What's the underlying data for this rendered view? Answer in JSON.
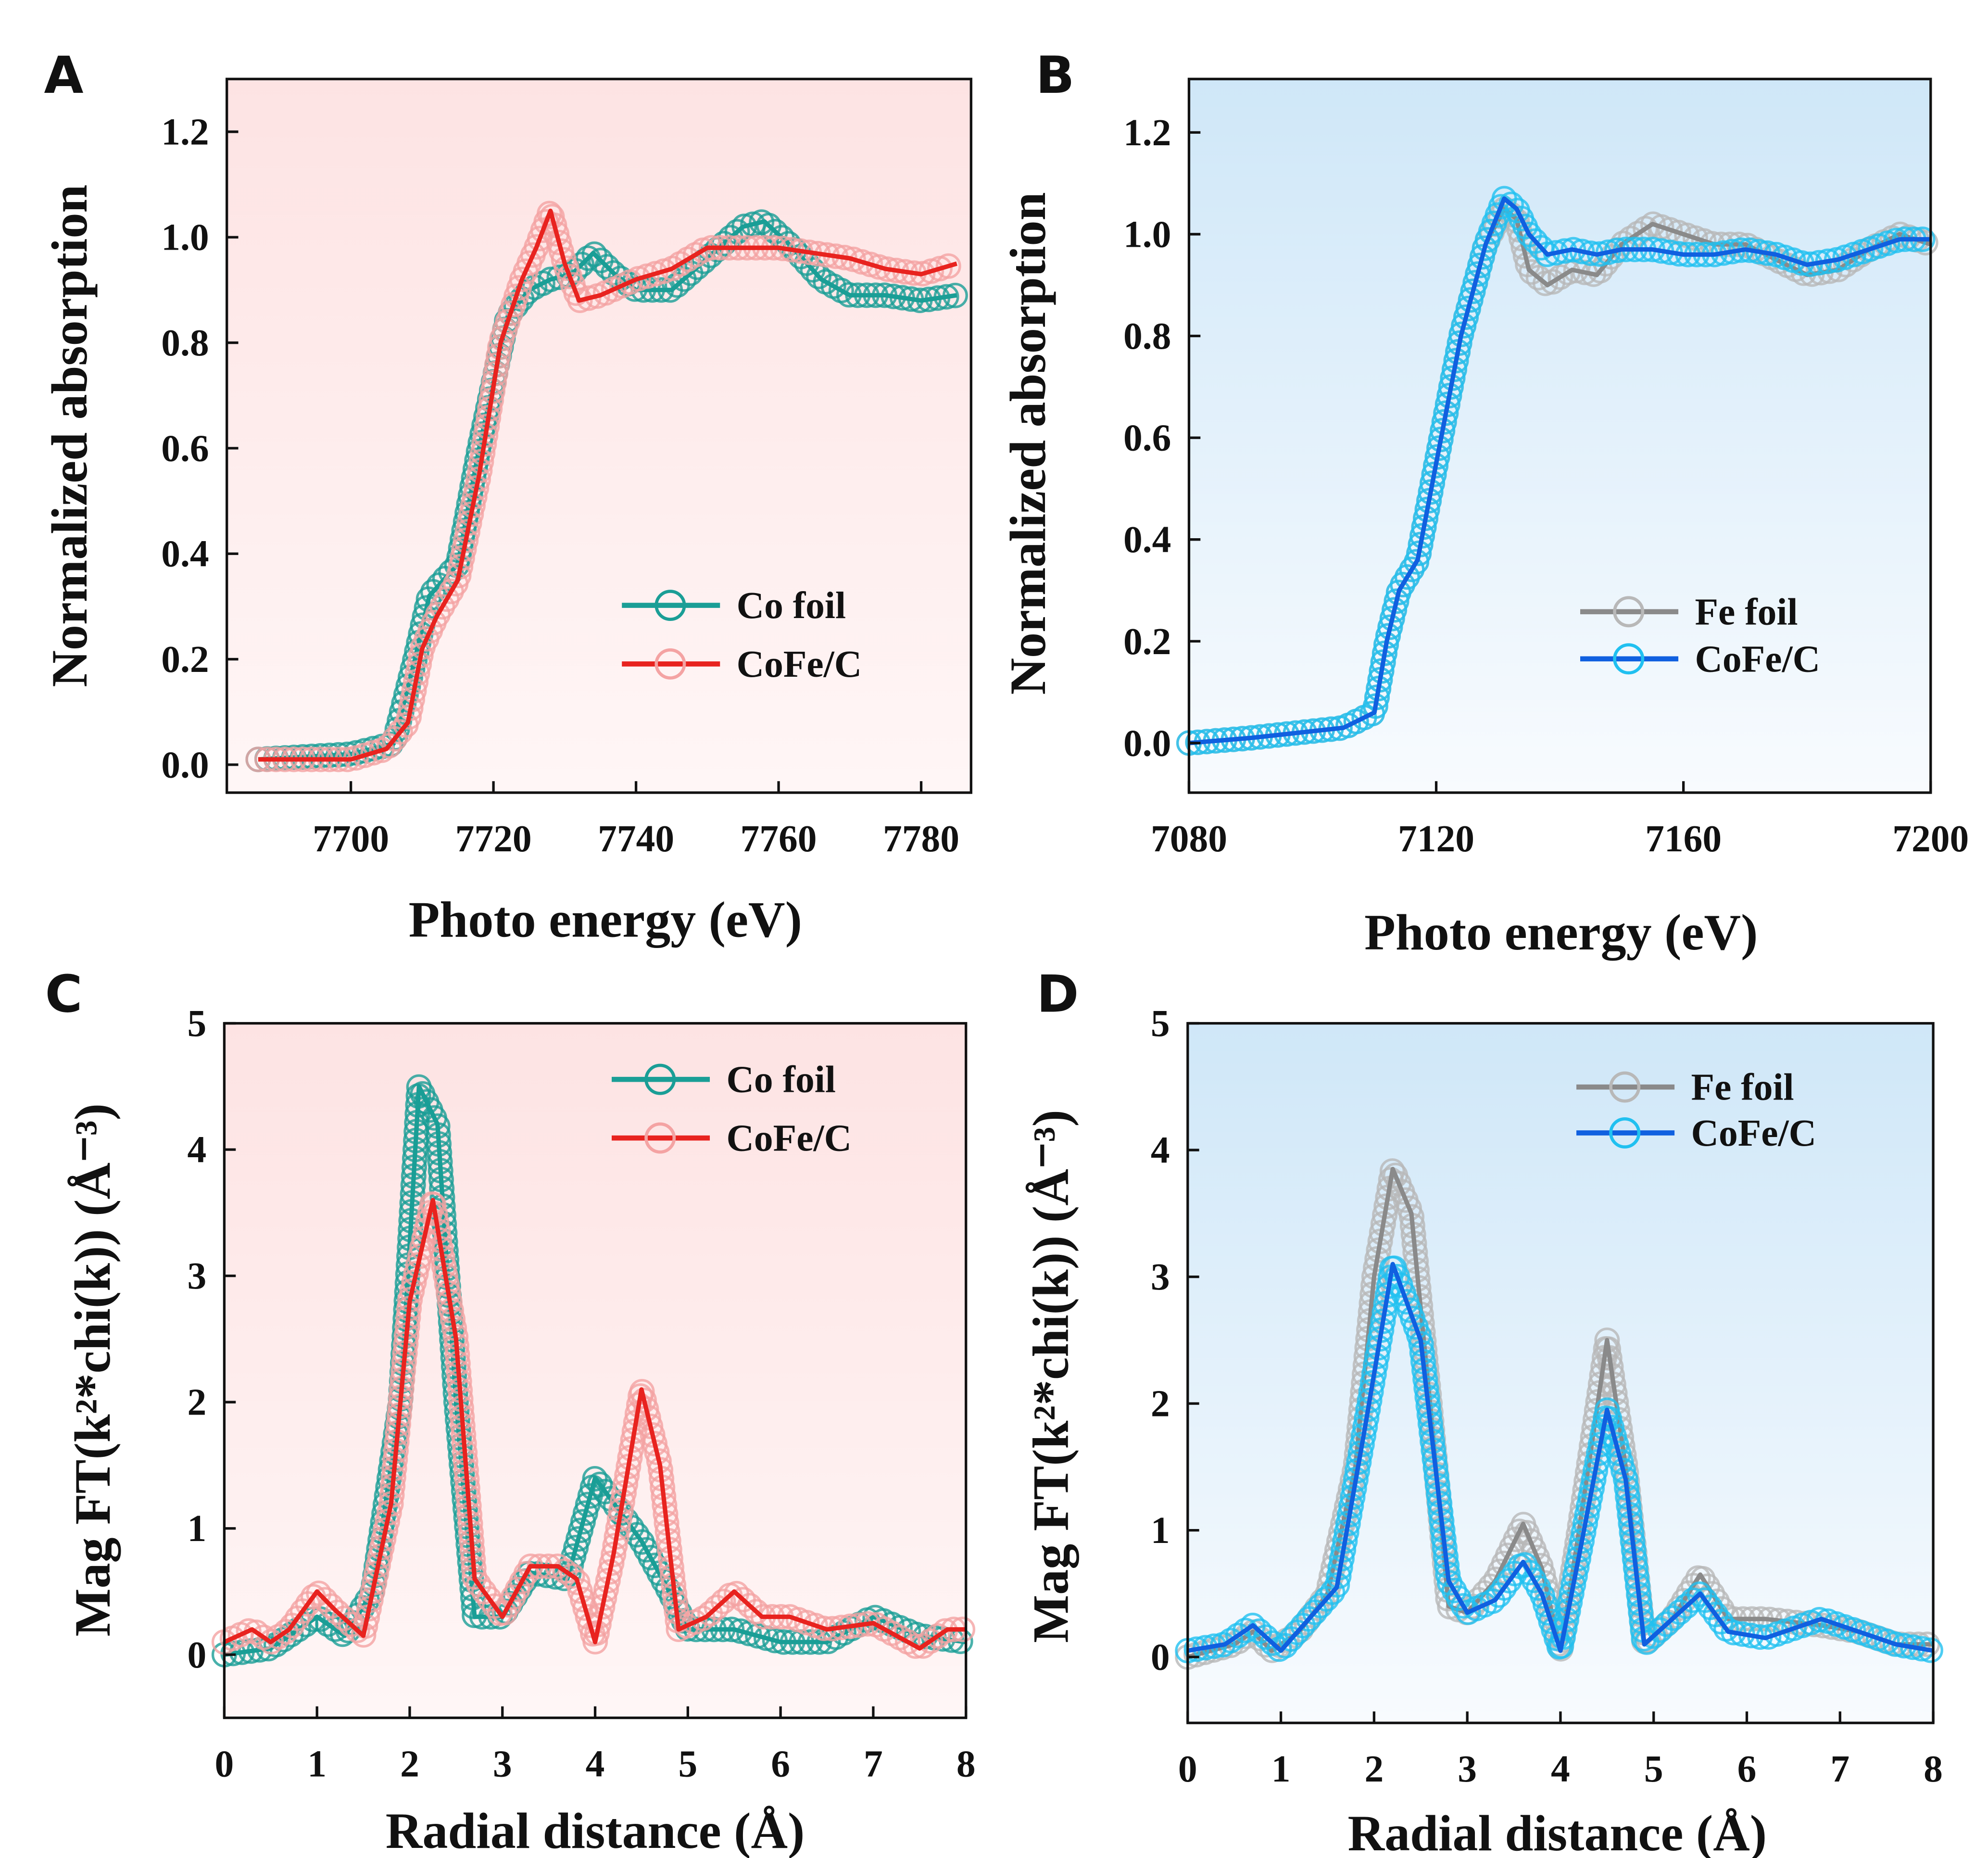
{
  "chart_data": [
    {
      "panel": "A",
      "type": "line",
      "xlabel": "Photo energy (eV)",
      "ylabel": "Normalized absorption",
      "xlim": [
        7682.6,
        7787
      ],
      "ylim": [
        -0.053,
        1.3
      ],
      "xticks": [
        "7700",
        "7720",
        "7740",
        "7760",
        "7780"
      ],
      "xtick_values": [
        7700,
        7720,
        7740,
        7760,
        7780
      ],
      "yticks": [
        "0.0",
        "0.2",
        "0.4",
        "0.6",
        "0.8",
        "1.0",
        "1.2"
      ],
      "ytick_values": [
        0,
        0.2,
        0.4,
        0.6,
        0.8,
        1.0,
        1.2
      ],
      "background": "pink",
      "legend": "center-right",
      "series": [
        {
          "name": "Co foil",
          "line_color": "#1a9e96",
          "marker_color": "#1a9e96",
          "x": [
            7687,
            7700,
            7706,
            7709,
            7711,
            7713,
            7715,
            7718,
            7722,
            7725,
            7728,
            7731,
            7734,
            7737,
            7740,
            7745,
            7750,
            7755,
            7758,
            7762,
            7766,
            7770,
            7775,
            7780,
            7785
          ],
          "y": [
            0.01,
            0.02,
            0.04,
            0.2,
            0.32,
            0.35,
            0.38,
            0.6,
            0.85,
            0.9,
            0.92,
            0.93,
            0.97,
            0.93,
            0.9,
            0.9,
            0.96,
            1.02,
            1.03,
            0.98,
            0.92,
            0.89,
            0.89,
            0.88,
            0.89
          ]
        },
        {
          "name": "CoFe/C",
          "line_color": "#e8231f",
          "marker_color": "#f4a3a3",
          "x": [
            7687,
            7700,
            7705,
            7708,
            7710,
            7712,
            7715,
            7718,
            7721,
            7724,
            7726,
            7728,
            7730,
            7732,
            7735,
            7740,
            7745,
            7750,
            7755,
            7760,
            7765,
            7770,
            7775,
            7780,
            7785
          ],
          "y": [
            0.01,
            0.01,
            0.03,
            0.08,
            0.22,
            0.28,
            0.35,
            0.55,
            0.8,
            0.92,
            0.98,
            1.05,
            0.95,
            0.88,
            0.89,
            0.92,
            0.94,
            0.98,
            0.98,
            0.98,
            0.97,
            0.96,
            0.94,
            0.93,
            0.95
          ]
        }
      ]
    },
    {
      "panel": "B",
      "type": "line",
      "xlabel": "Photo energy (eV)",
      "ylabel": "Normalized absorption",
      "xlim": [
        7080,
        7200
      ],
      "ylim": [
        -0.0975,
        1.305
      ],
      "xticks": [
        "7080",
        "7120",
        "7160",
        "7200"
      ],
      "xtick_values": [
        7080,
        7120,
        7160,
        7200
      ],
      "yticks": [
        "0.0",
        "0.2",
        "0.4",
        "0.6",
        "0.8",
        "1.0",
        "1.2"
      ],
      "ytick_values": [
        0,
        0.2,
        0.4,
        0.6,
        0.8,
        1.0,
        1.2
      ],
      "background": "light-blue",
      "legend": "center-right",
      "series": [
        {
          "name": "Fe foil",
          "line_color": "#8a8a8a",
          "marker_color": "#b8b8b8",
          "x": [
            7080,
            7090,
            7105,
            7110,
            7112,
            7114,
            7117,
            7120,
            7124,
            7128,
            7131,
            7133,
            7135,
            7138,
            7142,
            7146,
            7150,
            7155,
            7160,
            7165,
            7170,
            7175,
            7180,
            7185,
            7190,
            7195,
            7200
          ],
          "y": [
            0,
            0.01,
            0.03,
            0.06,
            0.2,
            0.3,
            0.36,
            0.55,
            0.8,
            0.98,
            1.05,
            1.03,
            0.93,
            0.9,
            0.93,
            0.92,
            0.98,
            1.02,
            1.0,
            0.98,
            0.98,
            0.95,
            0.92,
            0.93,
            0.97,
            1.0,
            0.98
          ]
        },
        {
          "name": "CoFe/C",
          "line_color": "#1060e0",
          "marker_color": "#20c0f0",
          "x": [
            7080,
            7090,
            7105,
            7110,
            7112,
            7114,
            7117,
            7120,
            7124,
            7128,
            7131,
            7133,
            7135,
            7138,
            7142,
            7146,
            7150,
            7155,
            7160,
            7165,
            7170,
            7175,
            7180,
            7185,
            7190,
            7195,
            7200
          ],
          "y": [
            0,
            0.01,
            0.03,
            0.06,
            0.2,
            0.3,
            0.36,
            0.55,
            0.8,
            0.98,
            1.07,
            1.05,
            1.0,
            0.96,
            0.97,
            0.96,
            0.97,
            0.97,
            0.96,
            0.96,
            0.97,
            0.96,
            0.94,
            0.95,
            0.97,
            0.99,
            0.99
          ]
        }
      ]
    },
    {
      "panel": "C",
      "type": "line",
      "xlabel": "Radial distance (Å)",
      "ylabel": "Mag FT(k²*chi(k)) (Å⁻³)",
      "xlim": [
        0,
        8
      ],
      "ylim": [
        -0.5,
        5
      ],
      "xticks": [
        "0",
        "1",
        "2",
        "3",
        "4",
        "5",
        "6",
        "7",
        "8"
      ],
      "xtick_values": [
        0,
        1,
        2,
        3,
        4,
        5,
        6,
        7,
        8
      ],
      "yticks": [
        "0",
        "1",
        "2",
        "3",
        "4",
        "5"
      ],
      "ytick_values": [
        0,
        1,
        2,
        3,
        4,
        5
      ],
      "background": "pink",
      "legend": "top-right",
      "series": [
        {
          "name": "Co foil",
          "line_color": "#1a9e96",
          "marker_color": "#1a9e96",
          "x": [
            0,
            0.5,
            1,
            1.3,
            1.6,
            1.9,
            2.1,
            2.3,
            2.5,
            2.7,
            3.0,
            3.3,
            3.7,
            4.0,
            4.2,
            4.5,
            4.8,
            5.0,
            5.5,
            6,
            6.5,
            7,
            7.5,
            8
          ],
          "y": [
            0,
            0.05,
            0.3,
            0.15,
            0.5,
            2.0,
            4.5,
            4.2,
            2.0,
            0.3,
            0.3,
            0.65,
            0.6,
            1.4,
            1.2,
            0.9,
            0.5,
            0.2,
            0.2,
            0.1,
            0.1,
            0.3,
            0.15,
            0.1
          ]
        },
        {
          "name": "CoFe/C",
          "line_color": "#e8231f",
          "marker_color": "#f4a3a3",
          "x": [
            0,
            0.3,
            0.5,
            0.7,
            1.0,
            1.2,
            1.5,
            1.8,
            2.0,
            2.25,
            2.5,
            2.7,
            3.0,
            3.3,
            3.6,
            3.8,
            4.0,
            4.2,
            4.5,
            4.7,
            4.9,
            5.2,
            5.5,
            5.8,
            6.1,
            6.5,
            7,
            7.5,
            7.8,
            8
          ],
          "y": [
            0.1,
            0.2,
            0.1,
            0.2,
            0.5,
            0.35,
            0.15,
            1.2,
            2.8,
            3.6,
            2.5,
            0.6,
            0.3,
            0.7,
            0.7,
            0.6,
            0.1,
            0.8,
            2.1,
            1.5,
            0.2,
            0.3,
            0.5,
            0.3,
            0.3,
            0.2,
            0.25,
            0.05,
            0.2,
            0.2
          ]
        }
      ]
    },
    {
      "panel": "D",
      "type": "line",
      "xlabel": "Radial distance (Å)",
      "ylabel": "Mag FT(k²*chi(k)) (Å⁻³)",
      "xlim": [
        0,
        8
      ],
      "ylim": [
        -0.52,
        5
      ],
      "xticks": [
        "0",
        "1",
        "2",
        "3",
        "4",
        "5",
        "6",
        "7",
        "8"
      ],
      "xtick_values": [
        0,
        1,
        2,
        3,
        4,
        5,
        6,
        7,
        8
      ],
      "yticks": [
        "0",
        "1",
        "2",
        "3",
        "4",
        "5"
      ],
      "ytick_values": [
        0,
        1,
        2,
        3,
        4,
        5
      ],
      "background": "light-blue",
      "legend": "top-right",
      "series": [
        {
          "name": "Fe foil",
          "line_color": "#8a8a8a",
          "marker_color": "#b8b8b8",
          "x": [
            0,
            0.5,
            0.7,
            0.9,
            1.2,
            1.5,
            1.8,
            2.0,
            2.2,
            2.4,
            2.6,
            2.8,
            3.0,
            3.3,
            3.6,
            3.8,
            4.0,
            4.2,
            4.5,
            4.7,
            4.9,
            5.2,
            5.5,
            5.8,
            6.2,
            6.8,
            7.2,
            7.6,
            8
          ],
          "y": [
            0,
            0.1,
            0.2,
            0.05,
            0.2,
            0.5,
            1.5,
            3.0,
            3.85,
            3.5,
            2.0,
            0.4,
            0.35,
            0.6,
            1.05,
            0.7,
            0.05,
            1.0,
            2.5,
            1.5,
            0.1,
            0.3,
            0.65,
            0.3,
            0.3,
            0.25,
            0.2,
            0.1,
            0.1
          ]
        },
        {
          "name": "CoFe/C",
          "line_color": "#1060e0",
          "marker_color": "#20c0f0",
          "x": [
            0,
            0.4,
            0.7,
            1.0,
            1.3,
            1.6,
            1.9,
            2.2,
            2.5,
            2.8,
            3.0,
            3.3,
            3.6,
            3.8,
            4.0,
            4.2,
            4.5,
            4.7,
            4.9,
            5.2,
            5.5,
            5.8,
            6.2,
            6.8,
            7.2,
            7.6,
            8
          ],
          "y": [
            0.05,
            0.1,
            0.25,
            0.05,
            0.3,
            0.55,
            1.8,
            3.1,
            2.5,
            0.6,
            0.35,
            0.45,
            0.75,
            0.5,
            0.05,
            0.8,
            1.95,
            1.4,
            0.1,
            0.3,
            0.5,
            0.2,
            0.15,
            0.3,
            0.2,
            0.1,
            0.05
          ]
        }
      ]
    }
  ]
}
